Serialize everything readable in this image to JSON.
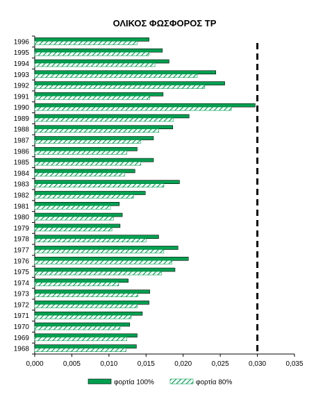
{
  "chart_data": {
    "type": "bar",
    "orientation": "horizontal",
    "title": "ΟΛΙΚΟΣ ΦΩΣΦΟΡΟΣ TP",
    "xlabel": "",
    "ylabel": "",
    "xlim": [
      0,
      0.035
    ],
    "x_ticks": [
      "0,000",
      "0,005",
      "0,010",
      "0,015",
      "0,020",
      "0,025",
      "0,030",
      "0,035"
    ],
    "grid": false,
    "legend_position": "bottom",
    "categories": [
      "1996",
      "1995",
      "1994",
      "1993",
      "1992",
      "1991",
      "1990",
      "1989",
      "1988",
      "1987",
      "1986",
      "1985",
      "1984",
      "1983",
      "1982",
      "1981",
      "1980",
      "1979",
      "1978",
      "1977",
      "1976",
      "1975",
      "1974",
      "1973",
      "1972",
      "1971",
      "1970",
      "1969",
      "1968"
    ],
    "series": [
      {
        "name": "φορτία 100%",
        "color": "#00a050",
        "pattern": "solid",
        "values": [
          0.0154,
          0.0172,
          0.0181,
          0.0244,
          0.0256,
          0.0173,
          0.0297,
          0.0208,
          0.0186,
          0.016,
          0.0138,
          0.016,
          0.0135,
          0.0195,
          0.0149,
          0.0114,
          0.0118,
          0.0115,
          0.0167,
          0.0193,
          0.0207,
          0.0189,
          0.0126,
          0.0155,
          0.0154,
          0.0145,
          0.0128,
          0.0138,
          0.0137
        ]
      },
      {
        "name": "φορτία 80%",
        "color": "#00a050",
        "pattern": "hatched",
        "values": [
          0.0138,
          0.0154,
          0.0162,
          0.0219,
          0.0229,
          0.0155,
          0.0265,
          0.0187,
          0.0167,
          0.0143,
          0.0124,
          0.0143,
          0.0121,
          0.0174,
          0.0133,
          0.0102,
          0.0106,
          0.0104,
          0.015,
          0.0174,
          0.0185,
          0.0171,
          0.0113,
          0.0139,
          0.0138,
          0.013,
          0.0115,
          0.0124,
          0.0123
        ]
      }
    ],
    "reference_line": {
      "value": 0.03,
      "style": "dashed",
      "color": "#000000"
    }
  }
}
